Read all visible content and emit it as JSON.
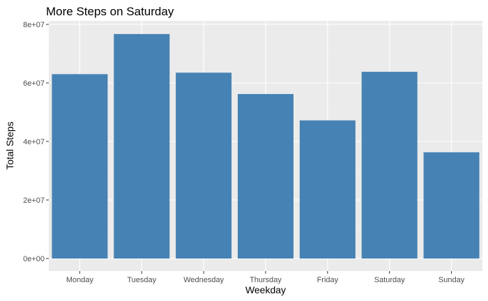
{
  "chart_data": {
    "type": "bar",
    "title": "More Steps on Saturday",
    "xlabel": "Weekday",
    "ylabel": "Total Steps",
    "categories": [
      "Monday",
      "Tuesday",
      "Wednesday",
      "Thursday",
      "Friday",
      "Saturday",
      "Sunday"
    ],
    "values": [
      63000000,
      76700000,
      63500000,
      56200000,
      47200000,
      63800000,
      36300000
    ],
    "ylim": [
      0,
      80000000
    ],
    "yticks": [
      0,
      20000000,
      40000000,
      60000000,
      80000000
    ],
    "ytick_labels": [
      "0e+00",
      "2e+07",
      "4e+07",
      "6e+07",
      "8e+07"
    ],
    "grid": true,
    "colors": {
      "bar": "#4682b4",
      "panel": "#ebebeb",
      "grid_major": "#ffffff",
      "grid_minor": "#f4f4f4"
    }
  }
}
